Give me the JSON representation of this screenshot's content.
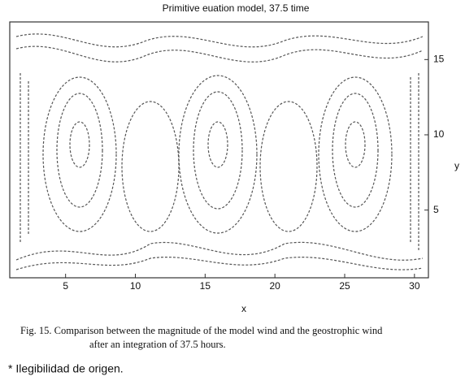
{
  "chart_data": {
    "type": "contour",
    "title": "Primitive euation model, 37.5 time",
    "xlabel": "x",
    "ylabel": "y",
    "xlim": [
      1,
      31
    ],
    "xticks": [
      5,
      10,
      15,
      20,
      25,
      30
    ],
    "ylim": [
      0.5,
      17.5
    ],
    "yticks": [
      5,
      10,
      15
    ]
  },
  "caption": {
    "line1": "Fig. 15. Comparison between the magnitude of the model wind and the geostrophic wind",
    "line2": "after an integration of 37.5 hours."
  },
  "note": "* Ilegibilidad de origen."
}
